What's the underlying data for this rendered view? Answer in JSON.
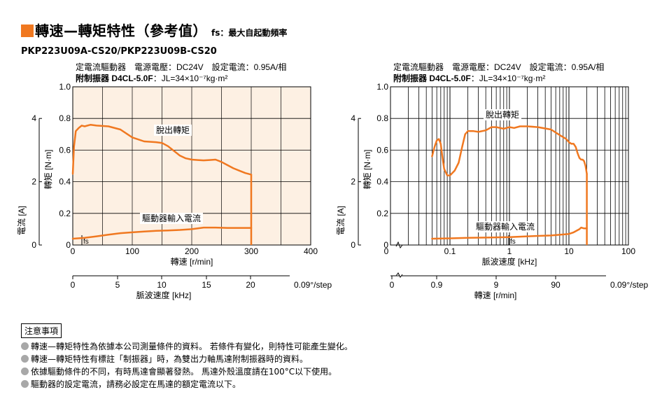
{
  "header": {
    "title": "轉速—轉矩特性（參考值）",
    "fs_note": "fs：最大自起動頻率",
    "model": "PKP223U09A-CS20/PKP223U09B-CS20"
  },
  "colors": {
    "accent": "#f07820",
    "curve": "#f07820",
    "plot_bg_left": "#fdf0e3"
  },
  "notes": {
    "title": "注意事項",
    "items": [
      "轉速—轉矩特性為依據本公司測量條件的資料。 若條件有變化，則特性可能產生變化。",
      "轉速—轉矩特性有標註「制振器」時，為雙出力軸馬達附制振器時的資料。",
      "依據驅動條件的不同，有時馬達會顯著發熱。 馬達外殼溫度請在100°C以下使用。",
      "驅動器的設定電流，請務必設定在馬達的額定電流以下。"
    ]
  },
  "chart_data": [
    {
      "type": "line",
      "panel": "left",
      "cond_line1": "定電流驅動器　電源電壓：DC24V　設定電流：0.95A/相",
      "cond_line2_bold": "附制振器 D4CL-5.0F",
      "cond_line2_rest": "：JL=34×10⁻⁷kg·m²",
      "ylabel": "轉矩 [N·m]",
      "y2label": "電流 [A]",
      "xlabel": "轉速 [r/min]",
      "x2label": "脈波速度 [kHz]",
      "xscale": "linear",
      "xlim": [
        0,
        400
      ],
      "ylim": [
        0,
        1.0
      ],
      "y2lim": [
        0,
        5
      ],
      "grid": true,
      "x_ticks": [
        "0",
        "100",
        "200",
        "300",
        "400"
      ],
      "y_ticks": [
        "0",
        "0.2",
        "0.4",
        "0.6",
        "0.8",
        "1.0"
      ],
      "y2_ticks": [
        "0",
        "2",
        "4"
      ],
      "x2_ticks": [
        "0",
        "5",
        "10",
        "15",
        "20"
      ],
      "x2_suffix": "0.09°/step",
      "fs_label": "fs",
      "series": [
        {
          "name": "脫出轉矩",
          "x": [
            0,
            2,
            5,
            10,
            15,
            20,
            30,
            40,
            60,
            80,
            100,
            120,
            140,
            150,
            160,
            170,
            180,
            190,
            200,
            210,
            220,
            230,
            240,
            250,
            260,
            270,
            280,
            290,
            300
          ],
          "y": [
            0.45,
            0.62,
            0.72,
            0.74,
            0.755,
            0.75,
            0.76,
            0.755,
            0.75,
            0.73,
            0.68,
            0.655,
            0.65,
            0.645,
            0.625,
            0.595,
            0.565,
            0.548,
            0.54,
            0.537,
            0.535,
            0.537,
            0.54,
            0.525,
            0.505,
            0.485,
            0.47,
            0.455,
            0.445
          ]
        },
        {
          "name": "驅動器輸入電流",
          "x": [
            0,
            20,
            40,
            60,
            80,
            100,
            120,
            140,
            160,
            180,
            200,
            220,
            240,
            260,
            280,
            300
          ],
          "y": [
            0.04,
            0.045,
            0.055,
            0.065,
            0.075,
            0.08,
            0.085,
            0.09,
            0.092,
            0.095,
            0.1,
            0.11,
            0.11,
            0.108,
            0.108,
            0.108
          ]
        }
      ]
    },
    {
      "type": "line",
      "panel": "right",
      "cond_line1": "定電流驅動器　電源電壓：DC24V　設定電流：0.95A/相",
      "cond_line2_bold": "附制振器 D4CL-5.0F",
      "cond_line2_rest": "：JL=34×10⁻⁷kg·m²",
      "ylabel": "轉矩 [N·m]",
      "y2label": "電流 [A]",
      "xlabel": "脈波速度 [kHz]",
      "x2label": "轉速 [r/min]",
      "xscale": "log",
      "xlim": [
        0.01,
        100
      ],
      "ylim": [
        0,
        1.0
      ],
      "y2lim": [
        0,
        5
      ],
      "grid": true,
      "x_ticks": [
        "0",
        "0.1",
        "1",
        "10",
        "100"
      ],
      "y_ticks": [
        "0",
        "0.2",
        "0.4",
        "0.6",
        "0.8",
        "1.0"
      ],
      "y2_ticks": [
        "0",
        "2",
        "4"
      ],
      "x2_ticks": [
        "0",
        "0.9",
        "9",
        "90"
      ],
      "x2_suffix": "0.09°/step",
      "fs_label": "fs",
      "series": [
        {
          "name": "脫出轉矩",
          "x": [
            0.05,
            0.055,
            0.06,
            0.065,
            0.07,
            0.075,
            0.08,
            0.09,
            0.1,
            0.12,
            0.14,
            0.16,
            0.18,
            0.2,
            0.25,
            0.3,
            0.4,
            0.5,
            0.6,
            0.7,
            0.8,
            1.0,
            1.2,
            1.5,
            2,
            3,
            5,
            7,
            9,
            10,
            11,
            12,
            13,
            14,
            15,
            16,
            17,
            18,
            19,
            20
          ],
          "y": [
            0.56,
            0.62,
            0.66,
            0.67,
            0.64,
            0.55,
            0.48,
            0.44,
            0.44,
            0.47,
            0.52,
            0.62,
            0.7,
            0.72,
            0.72,
            0.715,
            0.725,
            0.745,
            0.745,
            0.74,
            0.735,
            0.745,
            0.74,
            0.75,
            0.75,
            0.745,
            0.73,
            0.695,
            0.67,
            0.65,
            0.64,
            0.64,
            0.62,
            0.58,
            0.55,
            0.54,
            0.54,
            0.53,
            0.5,
            0.45
          ]
        },
        {
          "name": "驅動器輸入電流",
          "x": [
            0.05,
            0.1,
            0.2,
            0.5,
            1,
            2,
            5,
            10,
            12,
            15,
            16,
            18,
            20
          ],
          "y": [
            0.04,
            0.042,
            0.045,
            0.048,
            0.05,
            0.055,
            0.06,
            0.07,
            0.08,
            0.1,
            0.11,
            0.105,
            0.105
          ]
        }
      ]
    }
  ]
}
